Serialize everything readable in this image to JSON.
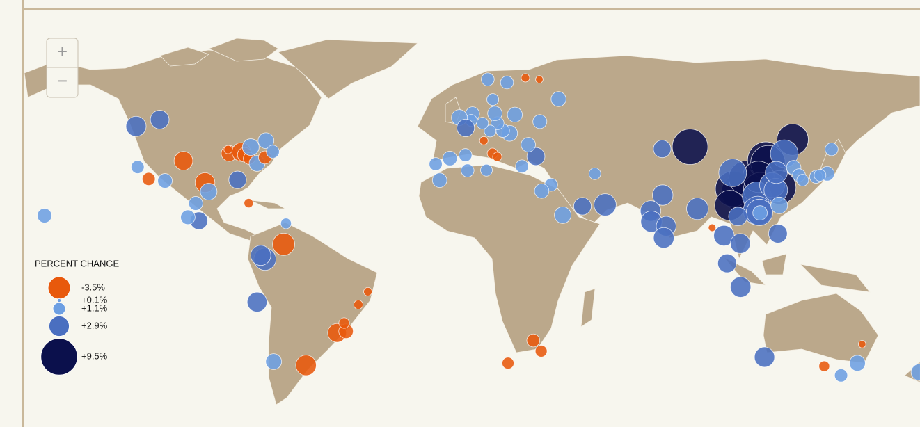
{
  "zoom": {
    "in": "+",
    "out": "−"
  },
  "legend": {
    "title": "PERCENT CHANGE",
    "items": [
      {
        "value": -3.5,
        "label": "-3.5%",
        "color": "#e8590c"
      },
      {
        "value": 0.1,
        "label": "+0.1%",
        "color": "#6d9fe2"
      },
      {
        "value": 1.1,
        "label": "+1.1%",
        "color": "#6d9fe2"
      },
      {
        "value": 2.9,
        "label": "+2.9%",
        "color": "#4a6fc0"
      },
      {
        "value": 9.5,
        "label": "+9.5%",
        "color": "#0b104c"
      }
    ]
  },
  "points": [
    {
      "lon": 87.6,
      "lat": 43.8,
      "value": 9.0
    },
    {
      "lon": 106.5,
      "lat": 29.6,
      "value": 9.5
    },
    {
      "lon": 104.0,
      "lat": 30.7,
      "value": 9.0
    },
    {
      "lon": 108.9,
      "lat": 34.3,
      "value": 8.5
    },
    {
      "lon": 116.4,
      "lat": 39.9,
      "value": 9.5
    },
    {
      "lon": 117.2,
      "lat": 39.1,
      "value": 8.5
    },
    {
      "lon": 114.3,
      "lat": 30.6,
      "value": 8.0
    },
    {
      "lon": 121.5,
      "lat": 31.2,
      "value": 8.0
    },
    {
      "lon": 113.6,
      "lat": 34.7,
      "value": 7.0
    },
    {
      "lon": 126.6,
      "lat": 45.8,
      "value": 7.0
    },
    {
      "lon": 102.7,
      "lat": 25.0,
      "value": 6.5
    },
    {
      "lon": 113.0,
      "lat": 28.2,
      "value": 6.0
    },
    {
      "lon": 113.3,
      "lat": 23.1,
      "value": 6.0
    },
    {
      "lon": 103.8,
      "lat": 36.0,
      "value": 5.5
    },
    {
      "lon": 123.4,
      "lat": 41.8,
      "value": 5.5
    },
    {
      "lon": 114.0,
      "lat": 22.5,
      "value": 5.0
    },
    {
      "lon": 118.8,
      "lat": 32.0,
      "value": 4.5
    },
    {
      "lon": 120.2,
      "lat": 30.3,
      "value": 4.0
    },
    {
      "lon": 120.4,
      "lat": 36.1,
      "value": 3.5
    },
    {
      "lon": 121.5,
      "lat": 25.0,
      "value": 2.0
    },
    {
      "lon": 114.2,
      "lat": 22.3,
      "value": 1.5
    },
    {
      "lon": 127.0,
      "lat": 37.6,
      "value": 1.5
    },
    {
      "lon": 129.0,
      "lat": 35.2,
      "value": 1.2
    },
    {
      "lon": 139.7,
      "lat": 35.7,
      "value": 1.5
    },
    {
      "lon": 135.5,
      "lat": 34.7,
      "value": 1.2
    },
    {
      "lon": 137.0,
      "lat": 35.2,
      "value": 1.0
    },
    {
      "lon": 141.4,
      "lat": 43.1,
      "value": 1.2
    },
    {
      "lon": 130.4,
      "lat": 33.6,
      "value": 1.0
    },
    {
      "lon": 77.0,
      "lat": 43.2,
      "value": 2.2
    },
    {
      "lon": 77.2,
      "lat": 28.6,
      "value": 3.0
    },
    {
      "lon": 72.6,
      "lat": 23.0,
      "value": 3.0
    },
    {
      "lon": 72.9,
      "lat": 19.1,
      "value": 3.2
    },
    {
      "lon": 78.5,
      "lat": 17.4,
      "value": 2.8
    },
    {
      "lon": 77.6,
      "lat": 13.0,
      "value": 3.0
    },
    {
      "lon": 90.4,
      "lat": 23.8,
      "value": 3.4
    },
    {
      "lon": 100.5,
      "lat": 13.8,
      "value": 3.0
    },
    {
      "lon": 105.8,
      "lat": 21.0,
      "value": 2.5
    },
    {
      "lon": 106.7,
      "lat": 10.8,
      "value": 2.8
    },
    {
      "lon": 101.7,
      "lat": 3.1,
      "value": 2.5
    },
    {
      "lon": 106.8,
      "lat": -6.2,
      "value": 3.0
    },
    {
      "lon": 121.0,
      "lat": 14.6,
      "value": 2.5
    },
    {
      "lon": 96.0,
      "lat": 16.8,
      "value": -0.4
    },
    {
      "lon": 55.3,
      "lat": 25.2,
      "value": 3.5
    },
    {
      "lon": 46.7,
      "lat": 24.7,
      "value": 2.2
    },
    {
      "lon": 39.2,
      "lat": 21.5,
      "value": 2.0
    },
    {
      "lon": 51.4,
      "lat": 35.7,
      "value": 1.0
    },
    {
      "lon": 34.8,
      "lat": 32.1,
      "value": 1.2
    },
    {
      "lon": 31.2,
      "lat": 30.0,
      "value": 1.5
    },
    {
      "lon": 29.0,
      "lat": 41.0,
      "value": 2.3
    },
    {
      "lon": 23.7,
      "lat": 38.0,
      "value": 1.2
    },
    {
      "lon": 26.1,
      "lat": 44.4,
      "value": 1.5
    },
    {
      "lon": 19.0,
      "lat": 47.5,
      "value": 1.8
    },
    {
      "lon": 16.4,
      "lat": 48.2,
      "value": 1.3
    },
    {
      "lon": 14.4,
      "lat": 50.1,
      "value": 1.2
    },
    {
      "lon": 21.0,
      "lat": 52.2,
      "value": 1.6
    },
    {
      "lon": 30.5,
      "lat": 50.5,
      "value": 1.4
    },
    {
      "lon": 37.6,
      "lat": 55.8,
      "value": 1.6
    },
    {
      "lon": 13.4,
      "lat": 52.5,
      "value": 1.5
    },
    {
      "lon": 11.6,
      "lat": 48.1,
      "value": 1.0
    },
    {
      "lon": 8.7,
      "lat": 50.1,
      "value": 1.0
    },
    {
      "lon": 4.9,
      "lat": 52.4,
      "value": 1.4
    },
    {
      "lon": 4.4,
      "lat": 50.8,
      "value": 1.0
    },
    {
      "lon": -0.1,
      "lat": 51.5,
      "value": 1.8
    },
    {
      "lon": 2.3,
      "lat": 48.9,
      "value": 2.2
    },
    {
      "lon": 18.0,
      "lat": 59.3,
      "value": 1.2
    },
    {
      "lon": 10.7,
      "lat": 59.9,
      "value": 1.2
    },
    {
      "lon": 12.6,
      "lat": 55.7,
      "value": 1.0
    },
    {
      "lon": 25.0,
      "lat": 60.2,
      "value": -0.5
    },
    {
      "lon": 30.3,
      "lat": 59.9,
      "value": -0.4
    },
    {
      "lon": -3.7,
      "lat": 40.4,
      "value": 1.5
    },
    {
      "lon": 2.2,
      "lat": 41.4,
      "value": 1.2
    },
    {
      "lon": -9.1,
      "lat": 38.7,
      "value": 1.2
    },
    {
      "lon": 12.5,
      "lat": 41.9,
      "value": -0.8
    },
    {
      "lon": 14.3,
      "lat": 40.9,
      "value": -0.6
    },
    {
      "lon": 9.2,
      "lat": 45.5,
      "value": -0.5
    },
    {
      "lon": 3.0,
      "lat": 36.7,
      "value": 1.2
    },
    {
      "lon": 10.2,
      "lat": 36.8,
      "value": 1.0
    },
    {
      "lon": -7.6,
      "lat": 33.6,
      "value": 1.5
    },
    {
      "lon": 28.0,
      "lat": -26.2,
      "value": -1.2
    },
    {
      "lon": 31.0,
      "lat": -29.9,
      "value": -1.0
    },
    {
      "lon": 18.4,
      "lat": -33.9,
      "value": -1.0
    },
    {
      "lon": 115.9,
      "lat": -31.9,
      "value": 2.9
    },
    {
      "lon": 138.6,
      "lat": -34.9,
      "value": -0.8
    },
    {
      "lon": 145.0,
      "lat": -37.8,
      "value": 1.2
    },
    {
      "lon": 151.2,
      "lat": -33.9,
      "value": 1.8
    },
    {
      "lon": 153.0,
      "lat": -27.5,
      "value": -0.4
    },
    {
      "lon": 174.8,
      "lat": -36.8,
      "value": 2.0
    },
    {
      "lon": -157.8,
      "lat": 21.3,
      "value": 1.5
    },
    {
      "lon": -123.0,
      "lat": 49.3,
      "value": 2.9
    },
    {
      "lon": -114.0,
      "lat": 51.0,
      "value": 2.5
    },
    {
      "lon": -122.4,
      "lat": 37.8,
      "value": 1.2
    },
    {
      "lon": -118.2,
      "lat": 34.0,
      "value": -1.2
    },
    {
      "lon": -112.0,
      "lat": 33.4,
      "value": 1.5
    },
    {
      "lon": -105.0,
      "lat": 39.7,
      "value": -2.5
    },
    {
      "lon": -96.8,
      "lat": 32.8,
      "value": -2.8
    },
    {
      "lon": -95.4,
      "lat": 29.8,
      "value": 2.0
    },
    {
      "lon": -87.6,
      "lat": 41.9,
      "value": -1.8
    },
    {
      "lon": -88.0,
      "lat": 43.0,
      "value": -0.5
    },
    {
      "lon": -84.4,
      "lat": 33.7,
      "value": 2.2
    },
    {
      "lon": -83.0,
      "lat": 42.3,
      "value": -2.5
    },
    {
      "lon": -81.7,
      "lat": 41.5,
      "value": -1.5
    },
    {
      "lon": -80.0,
      "lat": 40.4,
      "value": -1.0
    },
    {
      "lon": -79.4,
      "lat": 43.7,
      "value": 2.0
    },
    {
      "lon": -77.0,
      "lat": 38.9,
      "value": 1.8
    },
    {
      "lon": -74.0,
      "lat": 40.7,
      "value": -1.2
    },
    {
      "lon": -73.6,
      "lat": 45.5,
      "value": 1.8
    },
    {
      "lon": -71.0,
      "lat": 42.4,
      "value": 1.2
    },
    {
      "lon": -80.2,
      "lat": 25.8,
      "value": -0.6
    },
    {
      "lon": -99.1,
      "lat": 19.4,
      "value": 2.2
    },
    {
      "lon": -103.3,
      "lat": 20.7,
      "value": 1.5
    },
    {
      "lon": -100.3,
      "lat": 25.7,
      "value": 1.4
    },
    {
      "lon": -66.0,
      "lat": 18.4,
      "value": 0.8
    },
    {
      "lon": -66.9,
      "lat": 10.5,
      "value": -3.5
    },
    {
      "lon": -74.0,
      "lat": 4.7,
      "value": 3.5
    },
    {
      "lon": -75.6,
      "lat": 6.2,
      "value": 2.9
    },
    {
      "lon": -77.0,
      "lat": -12.0,
      "value": 2.8
    },
    {
      "lon": -70.7,
      "lat": -33.4,
      "value": 1.8
    },
    {
      "lon": -58.4,
      "lat": -34.6,
      "value": -3.0
    },
    {
      "lon": -46.6,
      "lat": -23.5,
      "value": -2.5
    },
    {
      "lon": -43.2,
      "lat": -22.9,
      "value": -1.5
    },
    {
      "lon": -43.9,
      "lat": -19.9,
      "value": -0.8
    },
    {
      "lon": -38.5,
      "lat": -13.0,
      "value": -0.6
    },
    {
      "lon": -34.9,
      "lat": -8.0,
      "value": -0.5
    }
  ]
}
